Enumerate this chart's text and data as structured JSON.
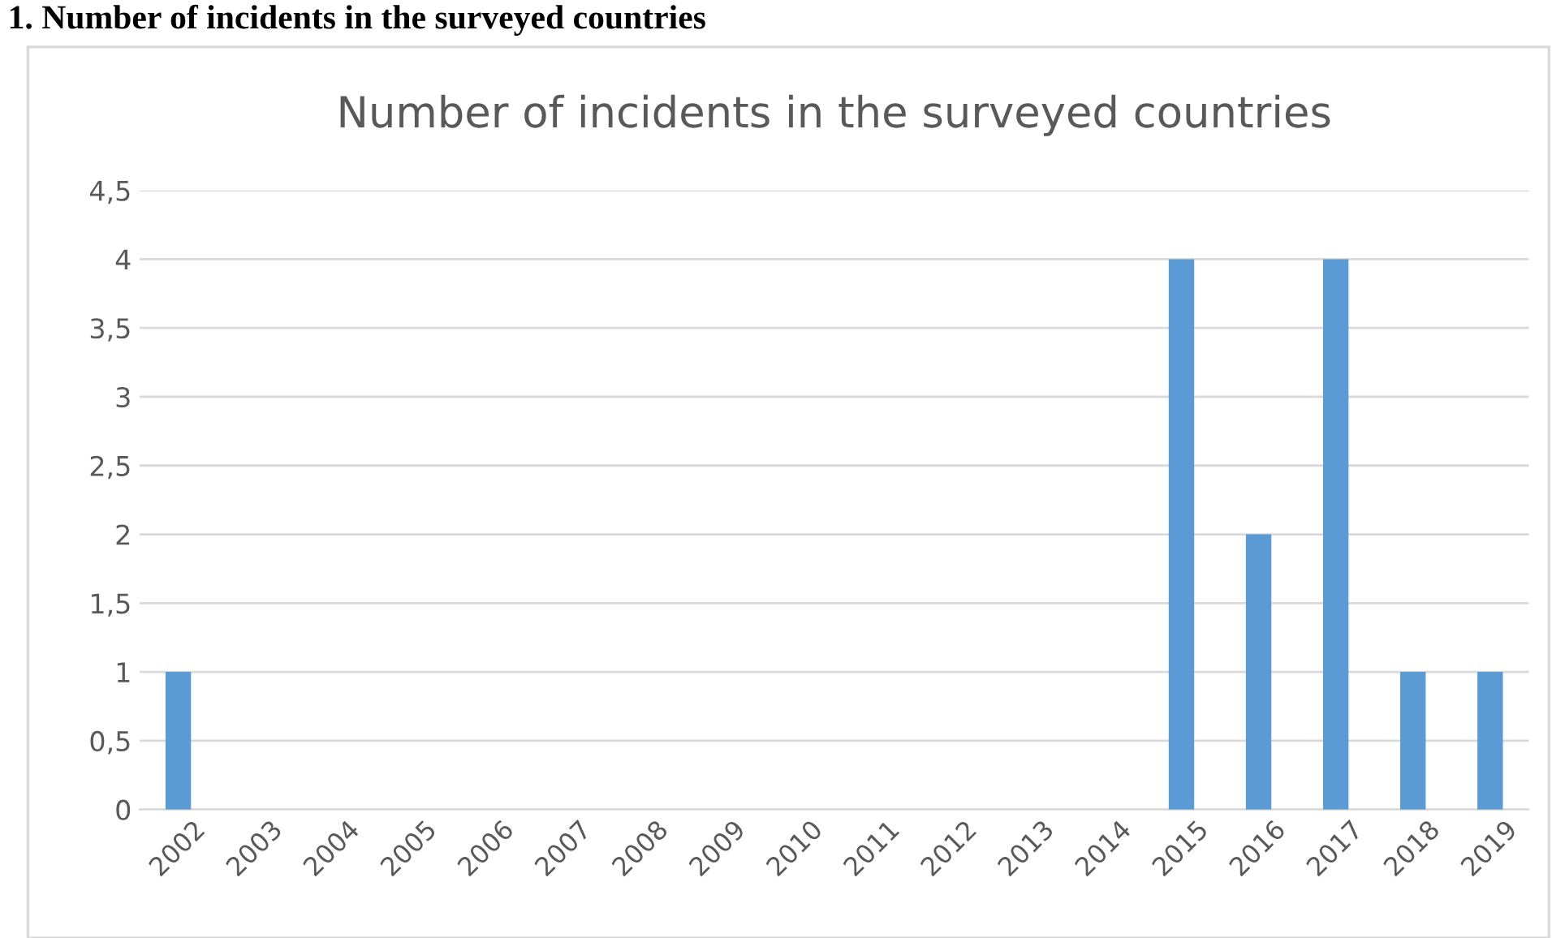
{
  "chart_data": {
    "type": "bar",
    "title": "Number of incidents in the surveyed countries",
    "annotations": [
      "1. Number of incidents in the surveyed countries"
    ],
    "categories": [
      "2002",
      "2003",
      "2004",
      "2005",
      "2006",
      "2007",
      "2008",
      "2009",
      "2010",
      "2011",
      "2012",
      "2013",
      "2014",
      "2015",
      "2016",
      "2017",
      "2018",
      "2019"
    ],
    "values": [
      1,
      0,
      0,
      0,
      0,
      0,
      0,
      0,
      0,
      0,
      0,
      0,
      0,
      4,
      2,
      4,
      1,
      1
    ],
    "color": "#5b9bd5",
    "ylim": [
      0,
      4.5
    ],
    "yticks": [
      0,
      {
        "value": 0.5,
        "label": "0,5"
      },
      1,
      {
        "value": 1.5,
        "label": "1,5"
      },
      2,
      {
        "value": 2.5,
        "label": "2,5"
      },
      3,
      {
        "value": 3.5,
        "label": "3,5"
      },
      4,
      {
        "value": 4.5,
        "label": "4,5"
      }
    ],
    "grid": "y",
    "legend": false
  }
}
